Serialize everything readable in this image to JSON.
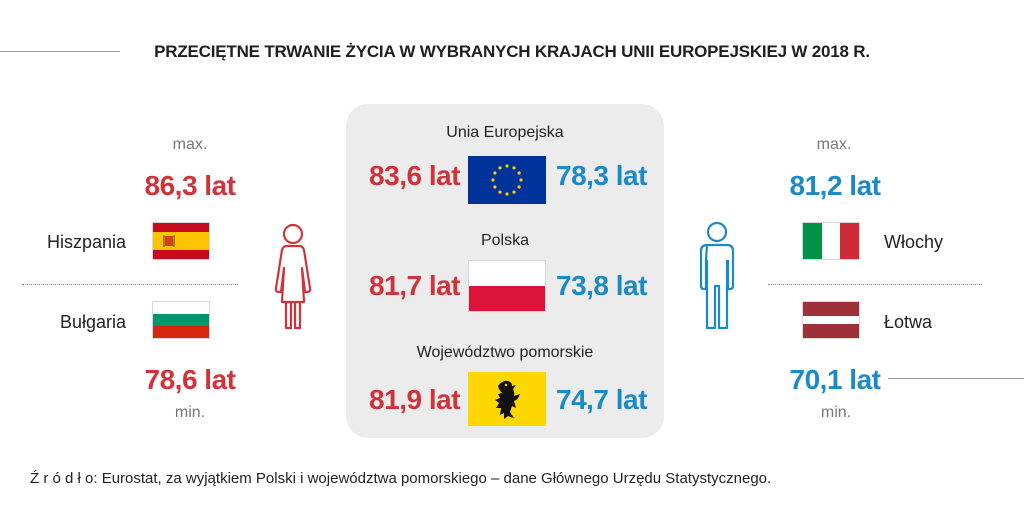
{
  "title": "PRZECIĘTNE TRWANIE ŻYCIA W WYBRANYCH KRAJACH UNII EUROPEJSKIEJ W 2018 R.",
  "source": "Ź r ó d ł o: Eurostat, za wyjątkiem Polski i województwa pomorskiego – dane Głównego Urzędu Statystycznego.",
  "colors": {
    "female": "#d0343a",
    "male": "#1d8ac8",
    "box": "#ececec"
  },
  "icons": {
    "female": "woman-icon",
    "male": "man-icon"
  },
  "chart_data": {
    "type": "table",
    "title": "PRZECIĘTNE TRWANIE ŻYCIA W WYBRANYCH KRAJACH UNII EUROPEJSKIEJ W 2018 R.",
    "center": [
      {
        "label": "Unia Europejska",
        "female": "83,6 lat",
        "male": "78,3 lat",
        "flag": "eu"
      },
      {
        "label": "Polska",
        "female": "81,7 lat",
        "male": "73,8 lat",
        "flag": "pl"
      },
      {
        "label": "Województwo pomorskie",
        "female": "81,9 lat",
        "male": "74,7 lat",
        "flag": "pomorskie"
      }
    ],
    "female_side": {
      "max": {
        "marker": "max.",
        "value": "86,3 lat",
        "country": "Hiszpania",
        "flag": "es"
      },
      "min": {
        "marker": "min.",
        "value": "78,6 lat",
        "country": "Bułgaria",
        "flag": "bg"
      }
    },
    "male_side": {
      "max": {
        "marker": "max.",
        "value": "81,2 lat",
        "country": "Włochy",
        "flag": "it"
      },
      "min": {
        "marker": "min.",
        "value": "70,1 lat",
        "country": "Łotwa",
        "flag": "lv"
      }
    }
  }
}
